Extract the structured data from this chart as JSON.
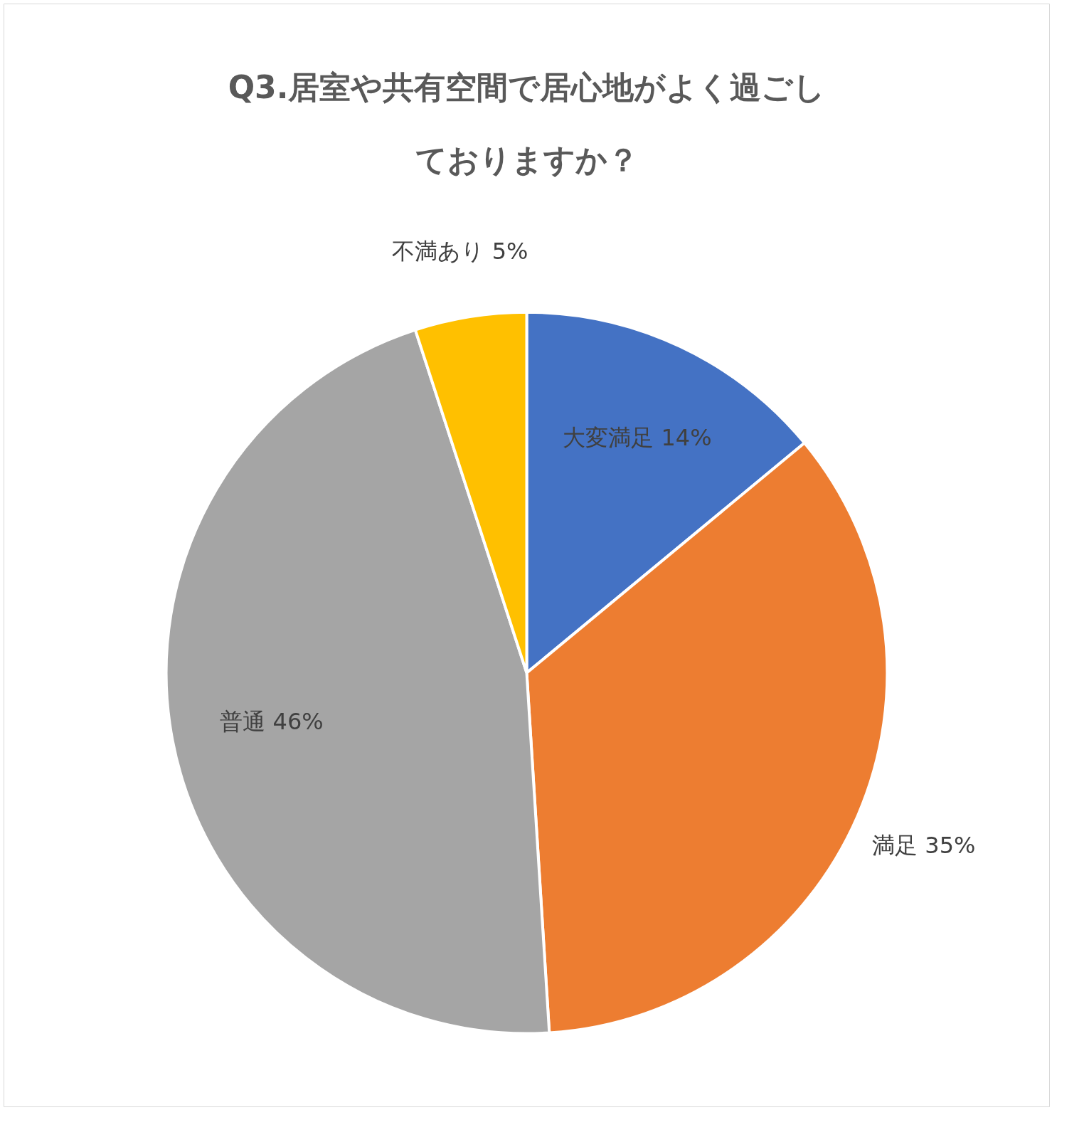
{
  "chart_data": {
    "type": "pie",
    "title": "Q3.居室や共有空間で居心地がよく過ごしておりますか？",
    "categories": [
      "大変満足",
      "満足",
      "普通",
      "不満あり"
    ],
    "values": [
      14,
      35,
      46,
      5
    ],
    "colors": [
      "#4472c4",
      "#ed7d31",
      "#a5a5a5",
      "#ffc000"
    ],
    "value_labels": [
      "14%",
      "35%",
      "46%",
      "5%"
    ]
  }
}
